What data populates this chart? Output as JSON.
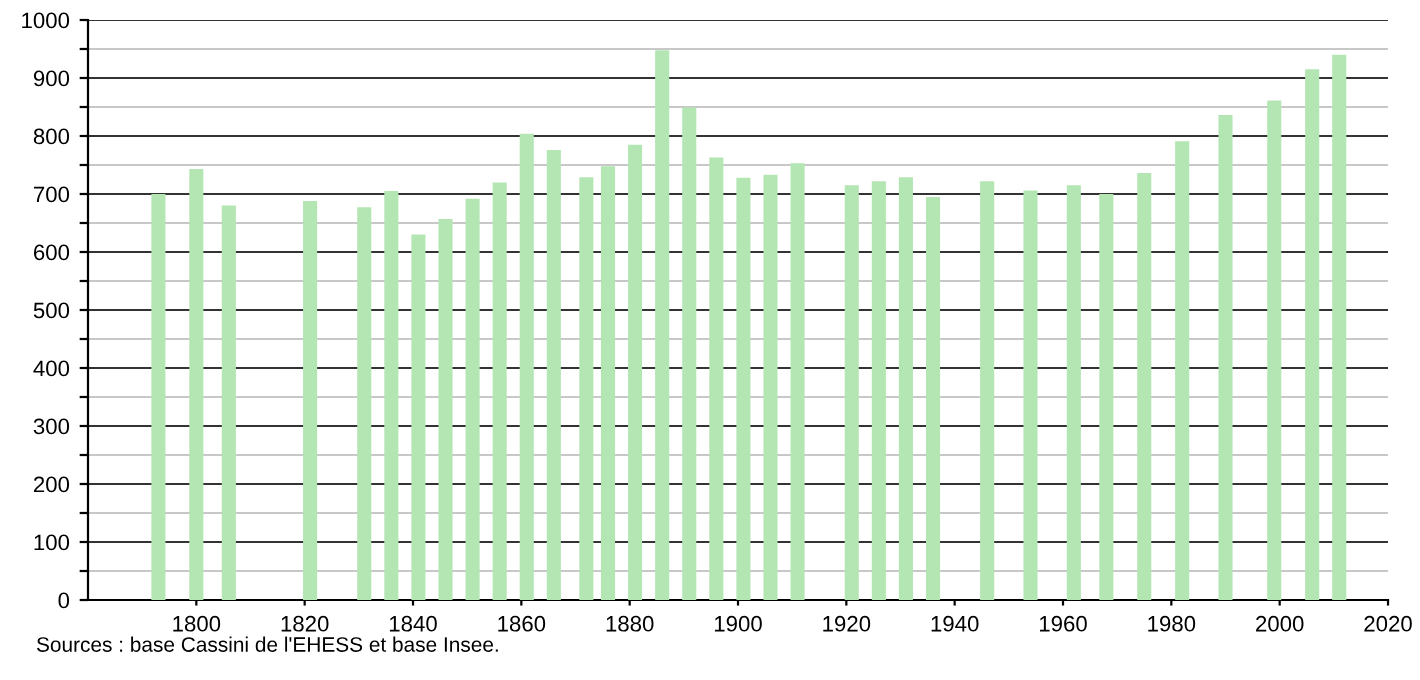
{
  "chart_data": {
    "type": "bar",
    "x": [
      1793,
      1800,
      1806,
      1821,
      1831,
      1836,
      1841,
      1846,
      1851,
      1856,
      1861,
      1866,
      1872,
      1876,
      1881,
      1886,
      1891,
      1896,
      1901,
      1906,
      1911,
      1921,
      1926,
      1931,
      1936,
      1946,
      1954,
      1962,
      1968,
      1975,
      1982,
      1990,
      1999,
      2006,
      2011
    ],
    "values": [
      700,
      743,
      680,
      688,
      677,
      705,
      630,
      657,
      692,
      720,
      804,
      776,
      729,
      748,
      785,
      948,
      849,
      763,
      728,
      733,
      753,
      715,
      722,
      729,
      695,
      722,
      706,
      715,
      700,
      736,
      791,
      836,
      861,
      915,
      940
    ],
    "color": "#b3e6b3",
    "xlim": [
      1780,
      2020
    ],
    "xticks": [
      1800,
      1820,
      1840,
      1860,
      1880,
      1900,
      1920,
      1940,
      1960,
      1980,
      2000,
      2020
    ],
    "ylim": [
      0,
      1000
    ],
    "yticks": [
      0,
      {
        "value": 50,
        "label": null
      },
      100,
      {
        "value": 150,
        "label": null
      },
      200,
      {
        "value": 250,
        "label": null
      },
      300,
      {
        "value": 350,
        "label": null
      },
      400,
      {
        "value": 450,
        "label": null
      },
      500,
      {
        "value": 550,
        "label": null
      },
      600,
      {
        "value": 650,
        "label": null
      },
      700,
      {
        "value": 750,
        "label": null
      },
      800,
      {
        "value": 850,
        "label": null
      },
      900,
      {
        "value": 950,
        "label": null
      },
      1000
    ],
    "grid": "y",
    "annotations": [
      "Sources : base Cassini de l'EHESS et base Insee."
    ]
  }
}
